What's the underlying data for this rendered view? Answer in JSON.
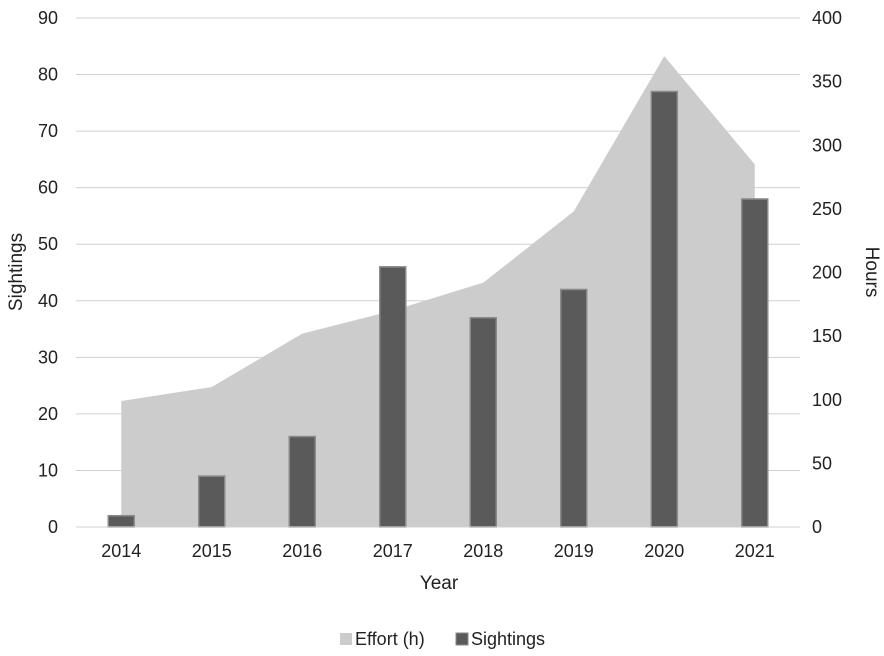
{
  "chart_data": {
    "type": "bar",
    "xlabel": "Year",
    "ylabel": "Sightings",
    "y2label": "Hours",
    "categories": [
      "2014",
      "2015",
      "2016",
      "2017",
      "2018",
      "2019",
      "2020",
      "2021"
    ],
    "ylim": [
      0,
      90
    ],
    "yticks": [
      0,
      10,
      20,
      30,
      40,
      50,
      60,
      70,
      80,
      90
    ],
    "y2lim": [
      0,
      400
    ],
    "y2ticks": [
      0,
      50,
      100,
      150,
      200,
      250,
      300,
      350,
      400
    ],
    "grid": true,
    "legend_position": "bottom",
    "series": [
      {
        "name": "Effort (h)",
        "type": "area",
        "axis": "right",
        "color": "#cccccc",
        "values": [
          99,
          110,
          152,
          170,
          192,
          248,
          370,
          285
        ]
      },
      {
        "name": "Sightings",
        "type": "bar",
        "axis": "left",
        "color": "#5a5a5a",
        "values": [
          2,
          9,
          16,
          46,
          37,
          42,
          77,
          58
        ]
      }
    ]
  }
}
